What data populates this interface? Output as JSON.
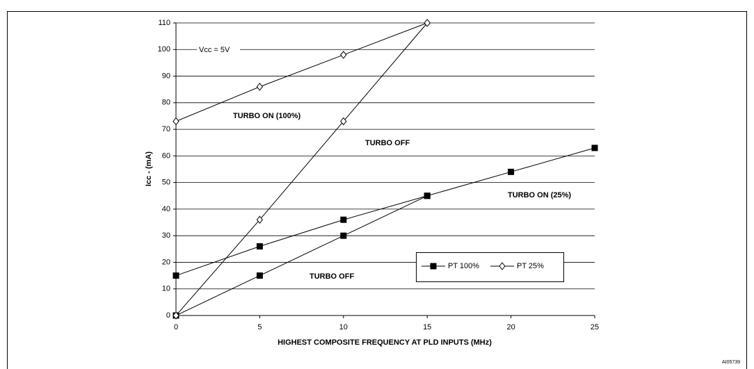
{
  "chart_data": {
    "type": "line",
    "x_label": "HIGHEST COMPOSITE FREQUENCY AT PLD INPUTS (MHz)",
    "y_label": "Icc - (mA)",
    "x": [
      0,
      5,
      10,
      15,
      20,
      25
    ],
    "xlim": [
      0,
      25
    ],
    "xticks": [
      0,
      5,
      10,
      15,
      20,
      25
    ],
    "ylim": [
      0,
      110
    ],
    "yticks": [
      0,
      10,
      20,
      30,
      40,
      50,
      60,
      70,
      80,
      90,
      100,
      110
    ],
    "grid": true,
    "annotations": [
      "Vcc = 5V",
      "AI05739"
    ],
    "legend": "bottom-right",
    "series": [
      {
        "name": "PT 100%",
        "marker": "square",
        "color": "#000000",
        "lines": [
          {
            "label": "TURBO ON (25%)",
            "values": [
              15,
              26,
              36,
              45,
              54,
              63
            ]
          },
          {
            "label": "TURBO OFF",
            "values": [
              0,
              15,
              30,
              45,
              null,
              null
            ]
          }
        ]
      },
      {
        "name": "PT 25%",
        "marker": "diamond",
        "color": "#000000",
        "lines": [
          {
            "label": "TURBO ON (100%)",
            "values": [
              73,
              86,
              98,
              110,
              null,
              null
            ]
          },
          {
            "label": "TURBO OFF",
            "values": [
              0,
              36,
              73,
              110,
              null,
              null
            ]
          }
        ]
      }
    ]
  }
}
